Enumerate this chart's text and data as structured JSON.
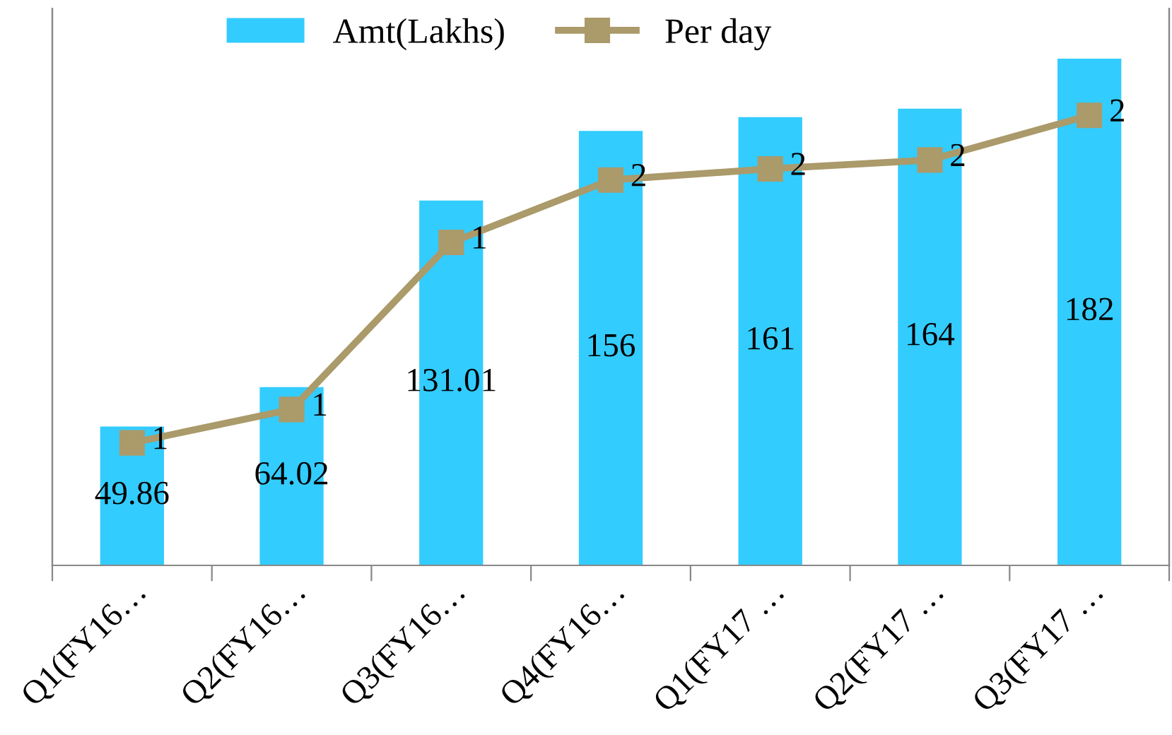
{
  "chart_data": {
    "type": "bar",
    "categories": [
      "Q1(FY16…",
      "Q2(FY16…",
      "Q3(FY16…",
      "Q4(FY16…",
      "Q1(FY17 …",
      "Q2(FY17 …",
      "Q3(FY17 …"
    ],
    "series": [
      {
        "name": "Amt(Lakhs)",
        "color": "#33ccff",
        "values": [
          49.86,
          64.02,
          131.01,
          156,
          161,
          164,
          182
        ],
        "data_labels": true
      },
      {
        "name": "Per day",
        "type": "line",
        "axis": "y2",
        "color": "#ab9a6a",
        "marker": "square",
        "line_style": "solid",
        "values": [
          0.55,
          0.7,
          1.45,
          1.73,
          1.78,
          1.82,
          2.02
        ],
        "value_labels": [
          "1",
          "1",
          "1",
          "2",
          "2",
          "2",
          "2"
        ]
      }
    ],
    "ylim": [
      0,
      200
    ],
    "y2lim": [
      0,
      2.5
    ],
    "tick_labels": "x",
    "grid": false,
    "legend": "top"
  }
}
